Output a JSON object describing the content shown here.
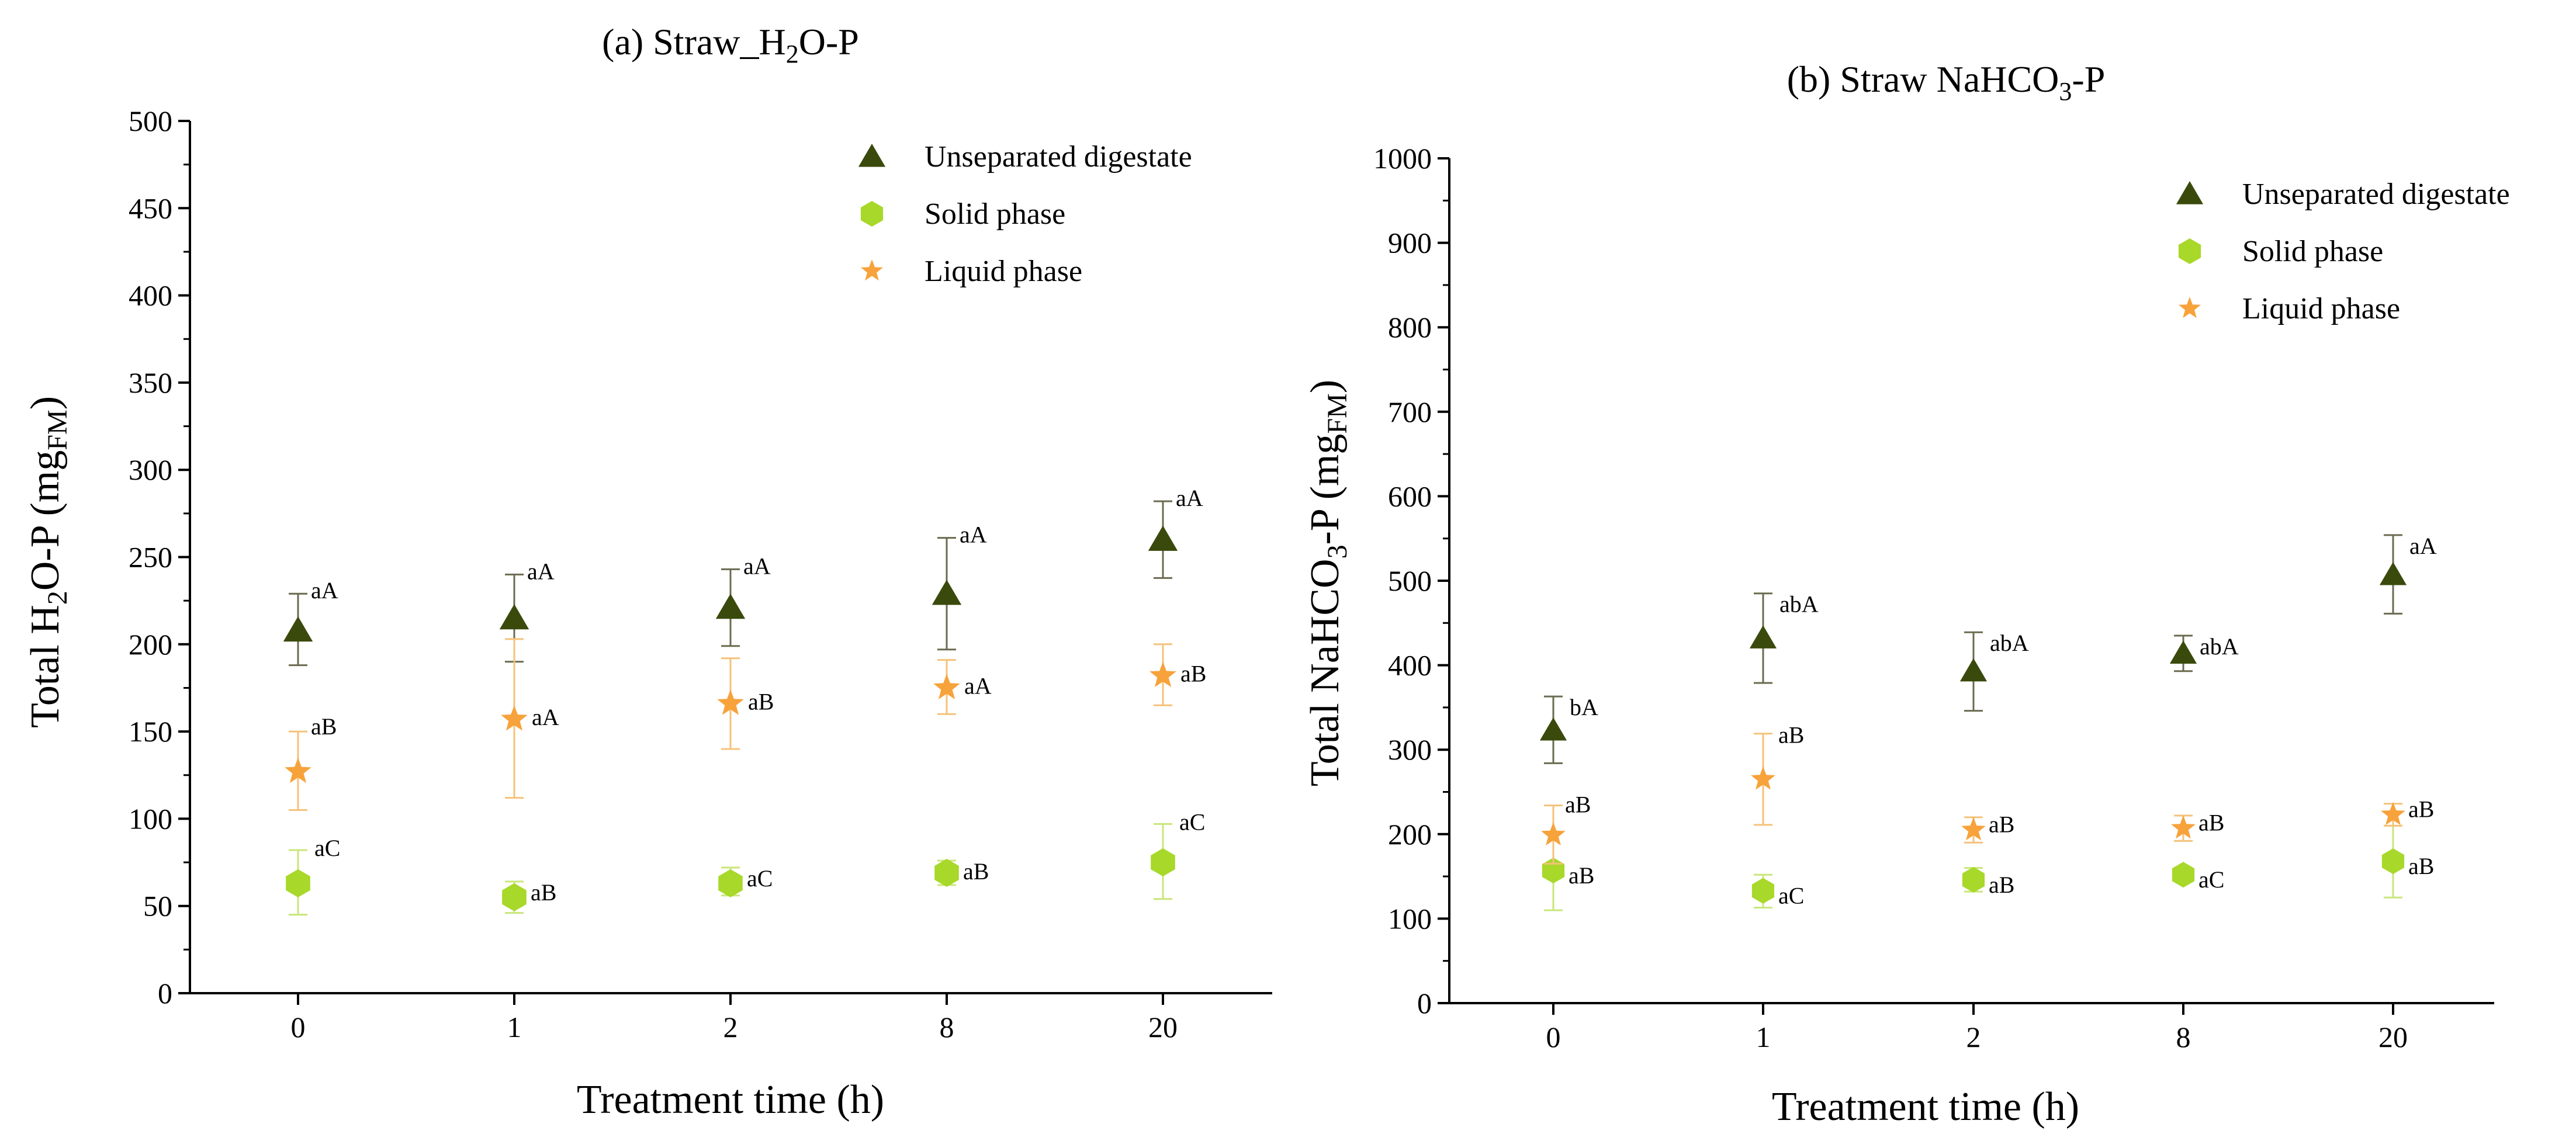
{
  "figure": {
    "panel_a_prefix": "(a) Straw_H",
    "panel_a_sub": "2",
    "panel_a_suffix": "O-P",
    "panel_b_prefix": "(b) Straw NaHCO",
    "panel_b_sub": "3",
    "panel_b_suffix": "-P"
  },
  "axes": {
    "a_ylabel_main": "Total H",
    "a_ylabel_sub2": "2",
    "a_ylabel_mid": "O-P (mg",
    "a_ylabel_subfm": "FM",
    "a_ylabel_end": ")",
    "b_ylabel_main": "Total NaHCO",
    "b_ylabel_sub3": "3",
    "b_ylabel_mid": "-P (mg",
    "b_ylabel_subfm": "FM",
    "b_ylabel_end": ")",
    "xlabel": "Treatment time (h)"
  },
  "legend": {
    "unseparated": "Unseparated digestate",
    "solid": "Solid phase",
    "liquid": "Liquid phase"
  },
  "colors": {
    "unseparated": "#3a4a0c",
    "solid": "#a8d82a",
    "liquid": "#f7a23a",
    "liquid_err": "#f5c27a",
    "solid_err": "#c9e67a",
    "unsep_err": "#6b6b50"
  },
  "chart_data": [
    {
      "type": "scatter",
      "title": "(a) Straw_H2O-P",
      "xlabel": "Treatment time (h)",
      "ylabel": "Total H2O-P (mgFM)",
      "categories": [
        "0",
        "1",
        "2",
        "8",
        "20"
      ],
      "ylim": [
        0,
        500
      ],
      "yticks": [
        0,
        50,
        100,
        150,
        200,
        250,
        300,
        350,
        400,
        450,
        500
      ],
      "legend_position": "top-right",
      "series": [
        {
          "name": "Unseparated digestate",
          "marker": "triangle",
          "values": [
            208,
            215,
            221,
            229,
            260
          ],
          "lower": [
            188,
            190,
            199,
            197,
            238
          ],
          "upper": [
            229,
            240,
            243,
            261,
            282
          ],
          "labels": [
            "aA",
            "aA",
            "aA",
            "aA",
            "aA"
          ]
        },
        {
          "name": "Solid phase",
          "marker": "hexagon",
          "values": [
            63,
            55,
            63,
            69,
            75
          ],
          "lower": [
            45,
            46,
            56,
            62,
            54
          ],
          "upper": [
            82,
            64,
            72,
            76,
            97
          ],
          "labels": [
            "aC",
            "aB",
            "aC",
            "aB",
            "aC"
          ]
        },
        {
          "name": "Liquid phase",
          "marker": "star",
          "values": [
            127,
            157,
            166,
            175,
            182
          ],
          "lower": [
            105,
            112,
            140,
            160,
            165
          ],
          "upper": [
            150,
            203,
            192,
            191,
            200
          ],
          "labels": [
            "aB",
            "aA",
            "aB",
            "aA",
            "aB"
          ]
        }
      ]
    },
    {
      "type": "scatter",
      "title": "(b) Straw NaHCO3-P",
      "xlabel": "Treatment time (h)",
      "ylabel": "Total NaHCO3-P (mgFM)",
      "categories": [
        "0",
        "1",
        "2",
        "8",
        "20"
      ],
      "ylim": [
        0,
        1000
      ],
      "yticks": [
        0,
        100,
        200,
        300,
        400,
        500,
        600,
        700,
        800,
        900,
        1000
      ],
      "legend_position": "top-right",
      "series": [
        {
          "name": "Unseparated digestate",
          "marker": "triangle",
          "values": [
            323,
            432,
            393,
            414,
            507
          ],
          "lower": [
            284,
            379,
            346,
            393,
            461
          ],
          "upper": [
            363,
            485,
            439,
            435,
            554
          ],
          "labels": [
            "bA",
            "abA",
            "abA",
            "abA",
            "aA"
          ]
        },
        {
          "name": "Solid phase",
          "marker": "hexagon",
          "values": [
            157,
            133,
            146,
            152,
            168
          ],
          "lower": [
            110,
            113,
            132,
            145,
            125
          ],
          "upper": [
            203,
            152,
            160,
            160,
            210
          ],
          "labels": [
            "aB",
            "aC",
            "aB",
            "aC",
            "aB"
          ]
        },
        {
          "name": "Liquid phase",
          "marker": "star",
          "values": [
            199,
            265,
            205,
            207,
            223
          ],
          "lower": [
            165,
            211,
            190,
            192,
            210
          ],
          "upper": [
            234,
            319,
            220,
            222,
            236
          ],
          "labels": [
            "aB",
            "aB",
            "aB",
            "aB",
            "aB"
          ]
        }
      ]
    }
  ]
}
